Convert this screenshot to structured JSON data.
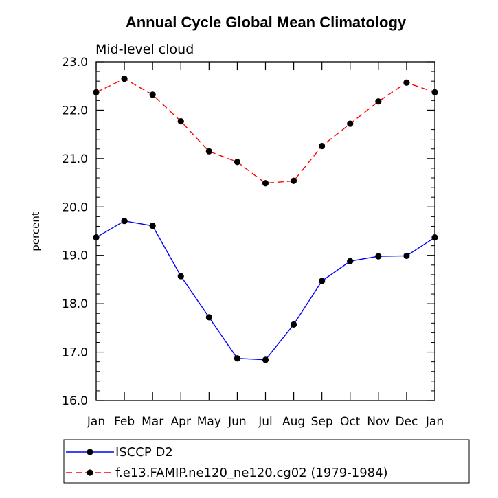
{
  "chart_data": {
    "type": "line",
    "title": "Annual Cycle Global Mean Climatology",
    "subtitle": "Mid-level cloud",
    "xlabel": "",
    "ylabel": "percent",
    "ylim": [
      16.0,
      23.0
    ],
    "y_ticks": [
      "16.0",
      "17.0",
      "18.0",
      "19.0",
      "20.0",
      "21.0",
      "22.0",
      "23.0"
    ],
    "categories": [
      "Jan",
      "Feb",
      "Mar",
      "Apr",
      "May",
      "Jun",
      "Jul",
      "Aug",
      "Sep",
      "Oct",
      "Nov",
      "Dec",
      "Jan"
    ],
    "grid": false,
    "legend_position": "bottom",
    "series": [
      {
        "name": "ISCCP D2",
        "color": "#0000ff",
        "dash": "solid",
        "values": [
          19.37,
          19.71,
          19.61,
          18.57,
          17.72,
          16.87,
          16.84,
          17.57,
          18.47,
          18.88,
          18.98,
          18.99,
          19.37
        ]
      },
      {
        "name": "f.e13.FAMIP.ne120_ne120.cg02 (1979-1984)",
        "color": "#ff0000",
        "dash": "dashed",
        "values": [
          22.37,
          22.65,
          22.32,
          21.77,
          21.15,
          20.93,
          20.49,
          20.54,
          21.26,
          21.72,
          22.18,
          22.57,
          22.37
        ]
      }
    ]
  }
}
